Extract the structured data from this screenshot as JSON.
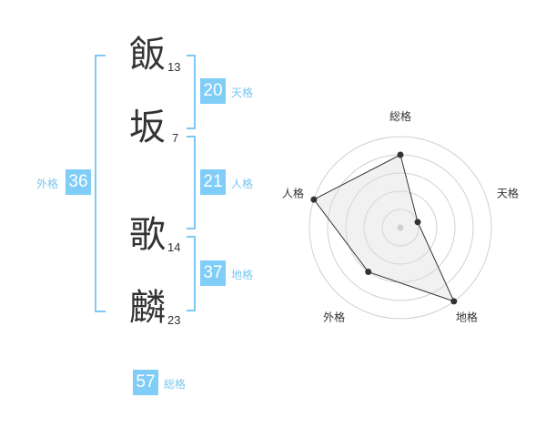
{
  "name": [
    {
      "char": "飯",
      "strokes": "13"
    },
    {
      "char": "坂",
      "strokes": "7"
    },
    {
      "char": "歌",
      "strokes": "14"
    },
    {
      "char": "麟",
      "strokes": "23"
    }
  ],
  "kaku": {
    "tenkaku": {
      "value": "20",
      "label": "天格"
    },
    "jinkaku": {
      "value": "21",
      "label": "人格"
    },
    "chikaku": {
      "value": "37",
      "label": "地格"
    },
    "gaikaku": {
      "value": "36",
      "label": "外格"
    },
    "soukaku": {
      "value": "57",
      "label": "総格"
    }
  },
  "colors": {
    "accent": "#80cdf8",
    "label": "#7cc6ee",
    "bracket": "#7fc8f4"
  },
  "chart_data": {
    "type": "radar",
    "axes": [
      "総格",
      "天格",
      "地格",
      "外格",
      "人格"
    ],
    "values": [
      4,
      1,
      5,
      3,
      5
    ],
    "range": [
      0,
      5
    ],
    "rings": 5
  }
}
